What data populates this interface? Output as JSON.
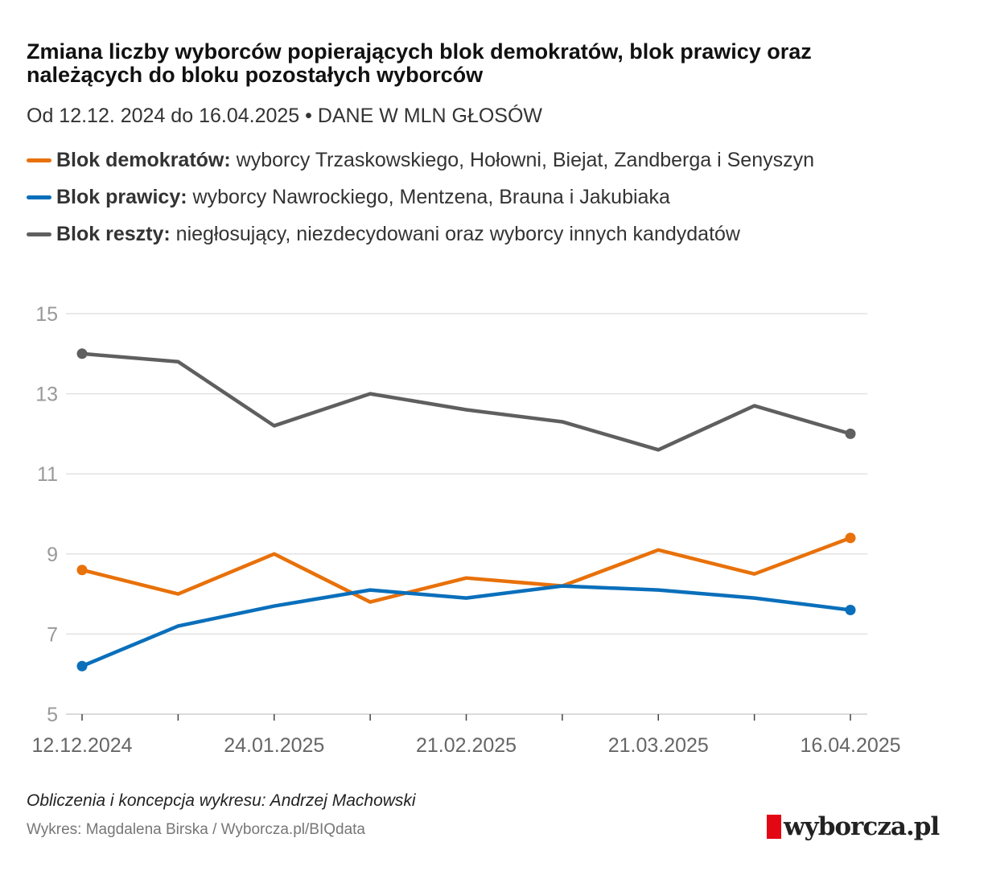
{
  "title": "Zmiana liczby wyborców popierających blok demokratów, blok prawicy oraz należących do bloku pozostałych wyborców",
  "subtitle": "Od 12.12. 2024 do 16.04.2025 • DANE W MLN GŁOSÓW",
  "legend": [
    {
      "label": "Blok demokratów:",
      "desc": " wyborcy Trzaskowskiego, Hołowni, Biejat, Zandberga i Senyszyn",
      "color": "#e8710a"
    },
    {
      "label": "Blok prawicy:",
      "desc": " wyborcy Nawrockiego, Mentzena, Brauna i Jakubiaka",
      "color": "#0a6fbb"
    },
    {
      "label": "Blok reszty:",
      "desc": " niegłosujący, niezdecydowani oraz wyborcy innych kandydatów",
      "color": "#5f5f5f"
    }
  ],
  "chart_data": {
    "type": "line",
    "x_points": 9,
    "tick_labels": [
      {
        "index": 0,
        "label": "12.12.2024"
      },
      {
        "index": 2,
        "label": "24.01.2025"
      },
      {
        "index": 4,
        "label": "21.02.2025"
      },
      {
        "index": 6,
        "label": "21.03.2025"
      },
      {
        "index": 8,
        "label": "16.04.2025"
      }
    ],
    "ylim": [
      5,
      15
    ],
    "yticks": [
      5,
      7,
      9,
      11,
      13,
      15
    ],
    "grid": true,
    "series": [
      {
        "name": "Blok reszty",
        "color": "#5f5f5f",
        "values": [
          14.0,
          13.8,
          12.2,
          13.0,
          12.6,
          12.3,
          11.6,
          12.7,
          12.0
        ]
      },
      {
        "name": "Blok demokratów",
        "color": "#e8710a",
        "values": [
          8.6,
          8.0,
          9.0,
          7.8,
          8.4,
          8.2,
          9.1,
          8.5,
          9.4
        ]
      },
      {
        "name": "Blok prawicy",
        "color": "#0a6fbb",
        "values": [
          6.2,
          7.2,
          7.7,
          8.1,
          7.9,
          8.2,
          8.1,
          7.9,
          7.6
        ]
      }
    ]
  },
  "credits": {
    "author": "Obliczenia i koncepcja wykresu: Andrzej Machowski",
    "source": "Wykres: Magdalena Birska / Wyborcza.pl/BIQdata",
    "logo": "wyborcza.pl"
  }
}
